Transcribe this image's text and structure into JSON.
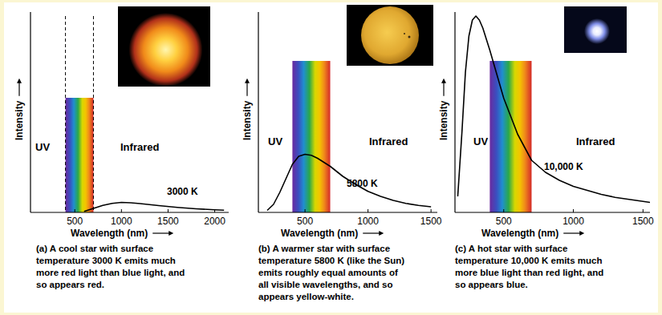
{
  "chart_data": [
    {
      "type": "line",
      "xlabel": "Wavelength (nm)",
      "ylabel": "Intensity",
      "annotations": [
        "UV",
        "Infrared"
      ],
      "caption": [
        "(a)  A cool star with surface",
        "temperature 3000 K emits much",
        "more red light than blue light, and",
        "so appears red."
      ],
      "visible_band": [
        400,
        700
      ],
      "x": [
        600,
        700,
        800,
        900,
        1000,
        1100,
        1200,
        1400,
        1600,
        1800,
        2000,
        2100
      ],
      "series": [
        {
          "name": "3000 K",
          "color": "#000000",
          "values": [
            0.5,
            2,
            3.5,
            4.5,
            5,
            4.8,
            4.4,
            3.4,
            2.5,
            1.8,
            1.3,
            1.1
          ]
        }
      ],
      "xlim": [
        25,
        2150
      ],
      "xticks": [
        500,
        1000,
        1500,
        2000
      ],
      "ylim": [
        0,
        100
      ],
      "yticks": [],
      "tick_labels": "x",
      "grid": false
    },
    {
      "type": "line",
      "xlabel": "Wavelength (nm)",
      "ylabel": "Intensity",
      "annotations": [
        "UV",
        "Infrared"
      ],
      "caption": [
        "(b)  A warmer star with surface",
        "temperature 5800 K (like the Sun)",
        "emits roughly equal amounts of",
        "all visible wavelengths, and so",
        "appears yellow-white."
      ],
      "visible_band": [
        400,
        700
      ],
      "x": [
        200,
        250,
        300,
        350,
        400,
        450,
        500,
        550,
        600,
        700,
        800,
        900,
        1000,
        1100,
        1200,
        1300,
        1400,
        1500
      ],
      "series": [
        {
          "name": "5800 K",
          "color": "#000000",
          "values": [
            1,
            4,
            10,
            17,
            24,
            28,
            29,
            28.5,
            27,
            23,
            18,
            14,
            10.5,
            8,
            6,
            4.5,
            3.5,
            2.8
          ]
        }
      ],
      "xlim": [
        130,
        1550
      ],
      "xticks": [
        500,
        1000,
        1500
      ],
      "ylim": [
        0,
        100
      ],
      "yticks": [],
      "tick_labels": "x",
      "grid": false
    },
    {
      "type": "line",
      "xlabel": "Wavelength (nm)",
      "ylabel": "Intensity",
      "annotations": [
        "UV",
        "Infrared"
      ],
      "caption": [
        "(c)  A hot star with surface",
        "temperature 10,000 K emits much",
        "more blue light than red light, and",
        "so appears blue."
      ],
      "visible_band": [
        400,
        700
      ],
      "x": [
        170,
        200,
        225,
        250,
        275,
        300,
        325,
        350,
        400,
        450,
        500,
        600,
        700,
        800,
        900,
        1000,
        1100,
        1200,
        1300,
        1400,
        1500,
        1550
      ],
      "series": [
        {
          "name": "10,000 K",
          "color": "#000000",
          "values": [
            8,
            40,
            70,
            88,
            96,
            98,
            96,
            92,
            81,
            69,
            57,
            39,
            26,
            20,
            16,
            13,
            11,
            9,
            7.5,
            6.5,
            5.5,
            5
          ]
        }
      ],
      "xlim": [
        150,
        1550
      ],
      "xticks": [
        500,
        1000,
        1500
      ],
      "ylim": [
        0,
        100
      ],
      "yticks": [],
      "tick_labels": "x",
      "grid": false
    }
  ]
}
